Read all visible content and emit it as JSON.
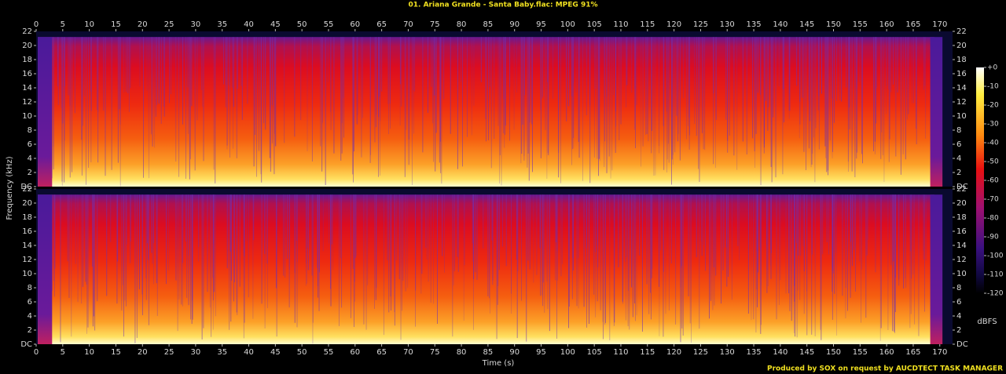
{
  "chart_data": {
    "type": "spectrogram",
    "title": "01. Ariana Grande - Santa Baby.flac: MPEG 91%",
    "x_label": "Time (s)",
    "y_label": "Frequency (kHz)",
    "xlim": [
      0,
      172.4
    ],
    "xticks": [
      0,
      5,
      10,
      15,
      20,
      25,
      30,
      35,
      40,
      45,
      50,
      55,
      60,
      65,
      70,
      75,
      80,
      85,
      90,
      95,
      100,
      105,
      110,
      115,
      120,
      125,
      130,
      135,
      140,
      145,
      150,
      155,
      160,
      165,
      170
    ],
    "ylim": [
      0,
      22
    ],
    "yticks": [
      {
        "value": 0,
        "label": "DC"
      },
      2,
      4,
      6,
      8,
      10,
      12,
      14,
      16,
      18,
      20,
      22
    ],
    "colorbar": {
      "label": "dBFS",
      "lim": [
        -120,
        0
      ],
      "ticks": [
        {
          "value": 0,
          "label": "+0"
        },
        -10,
        -20,
        -30,
        -40,
        -50,
        -60,
        -70,
        -80,
        -90,
        -100,
        -110,
        -120
      ]
    },
    "credit": "Produced by SOX on request by AUCDTECT TASK MANAGER"
  }
}
